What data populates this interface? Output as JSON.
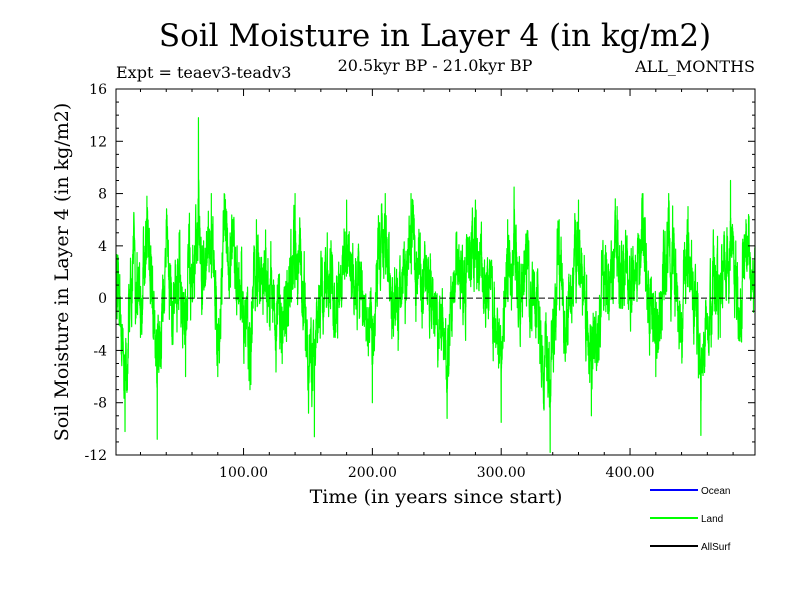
{
  "chart_data": {
    "type": "line",
    "title": "Soil Moisture in Layer 4 (in kg/m2)",
    "subtitle_left": "Expt = teaev3-teadv3",
    "subtitle_center": "20.5kyr BP - 21.0kyr BP",
    "subtitle_right": "ALL_MONTHS",
    "xlabel": "Time (in years since start)",
    "ylabel": "Soil Moisture in Layer 4 (in kg/m2)",
    "xlim": [
      1,
      497
    ],
    "ylim": [
      -12,
      16
    ],
    "x_ticks": [
      100,
      200,
      300,
      400
    ],
    "x_tick_labels": [
      "100.00",
      "200.00",
      "300.00",
      "400.00"
    ],
    "y_ticks": [
      -12,
      -8,
      -4,
      0,
      4,
      8,
      12,
      16
    ],
    "y_tick_labels": [
      "-12",
      "-8",
      "-4",
      "0",
      "4",
      "8",
      "12",
      "16"
    ],
    "zero_line": "dashed",
    "legend_position": "bottom-right",
    "series": [
      {
        "name": "Ocean",
        "color": "#0000ff",
        "values": []
      },
      {
        "name": "Land",
        "color": "#00ff00",
        "sampling": "monthly",
        "n_points": 5952,
        "anchor_points": [
          [
            1,
            2
          ],
          [
            5,
            -2
          ],
          [
            8,
            -10.2
          ],
          [
            15,
            6
          ],
          [
            20,
            -3
          ],
          [
            25,
            7.8
          ],
          [
            28,
            4
          ],
          [
            33,
            -10.8
          ],
          [
            40,
            6
          ],
          [
            45,
            -2
          ],
          [
            50,
            5
          ],
          [
            55,
            -6
          ],
          [
            58,
            6.5
          ],
          [
            62,
            4
          ],
          [
            65,
            13.8
          ],
          [
            68,
            4
          ],
          [
            75,
            8
          ],
          [
            80,
            -6
          ],
          [
            85,
            8
          ],
          [
            95,
            4
          ],
          [
            105,
            -7
          ],
          [
            110,
            6
          ],
          [
            120,
            1
          ],
          [
            130,
            -5
          ],
          [
            140,
            8
          ],
          [
            148,
            -4
          ],
          [
            155,
            -10.6
          ],
          [
            160,
            3
          ],
          [
            165,
            5
          ],
          [
            170,
            0
          ],
          [
            180,
            7.5
          ],
          [
            190,
            2
          ],
          [
            200,
            -8
          ],
          [
            205,
            4
          ],
          [
            210,
            8
          ],
          [
            220,
            -4
          ],
          [
            230,
            8
          ],
          [
            240,
            3
          ],
          [
            250,
            -2
          ],
          [
            258,
            -9.2
          ],
          [
            265,
            5
          ],
          [
            270,
            2
          ],
          [
            280,
            7.5
          ],
          [
            290,
            1
          ],
          [
            300,
            -9.5
          ],
          [
            305,
            6
          ],
          [
            310,
            8.5
          ],
          [
            315,
            -2
          ],
          [
            320,
            5
          ],
          [
            330,
            -5
          ],
          [
            338,
            -11.8
          ],
          [
            345,
            6
          ],
          [
            350,
            -4
          ],
          [
            360,
            7.5
          ],
          [
            370,
            -9
          ],
          [
            380,
            2
          ],
          [
            390,
            7
          ],
          [
            400,
            1
          ],
          [
            410,
            8
          ],
          [
            420,
            -6
          ],
          [
            430,
            8
          ],
          [
            440,
            -2
          ],
          [
            445,
            7
          ],
          [
            455,
            -10.5
          ],
          [
            465,
            4
          ],
          [
            470,
            -3
          ],
          [
            478,
            9
          ],
          [
            485,
            -2
          ],
          [
            490,
            6
          ],
          [
            497,
            4
          ]
        ],
        "range": [
          -11.8,
          13.8
        ]
      },
      {
        "name": "AllSurf",
        "color": "#000000",
        "values": []
      }
    ]
  }
}
